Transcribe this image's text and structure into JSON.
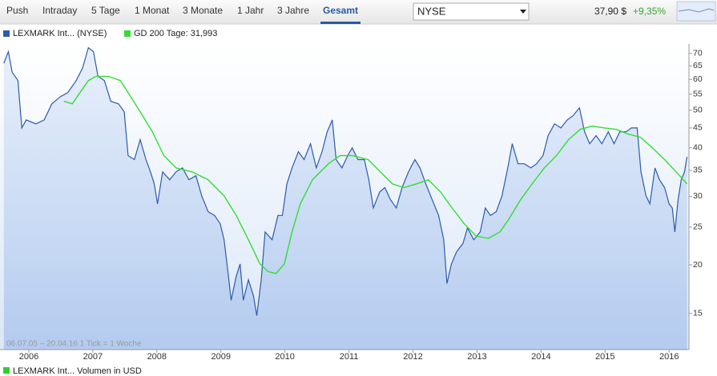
{
  "ui": {
    "tabs": [
      "Push",
      "Intraday",
      "5 Tage",
      "1 Monat",
      "3 Monate",
      "1 Jahr",
      "3 Jahre",
      "Gesamt"
    ],
    "active_tab": 7,
    "exchange": "NYSE",
    "price": "37,90 $",
    "change": "+9,35%"
  },
  "chart_data": {
    "type": "line",
    "log_scale": true,
    "xlim": [
      2005.55,
      2016.31
    ],
    "xticks": [
      2006,
      2007,
      2008,
      2009,
      2010,
      2011,
      2012,
      2013,
      2014,
      2015,
      2016
    ],
    "ylim": [
      12.1,
      74
    ],
    "yticks": [
      15,
      20,
      25,
      30,
      35,
      40,
      45,
      50,
      55,
      60,
      65,
      70
    ],
    "note": "06.07.05 – 20.04.16   1 Tick = 1 Woche",
    "series": [
      {
        "name": "LEXMARK Int... (NYSE)",
        "color": "#2d5ca8",
        "x": [
          2005.61,
          2005.68,
          2005.74,
          2005.83,
          2005.89,
          2005.96,
          2006.11,
          2006.24,
          2006.36,
          2006.49,
          2006.61,
          2006.74,
          2006.84,
          2006.93,
          2007.01,
          2007.08,
          2007.18,
          2007.28,
          2007.4,
          2007.49,
          2007.55,
          2007.65,
          2007.74,
          2007.83,
          2007.9,
          2007.96,
          2008.01,
          2008.09,
          2008.2,
          2008.3,
          2008.4,
          2008.5,
          2008.61,
          2008.7,
          2008.8,
          2008.9,
          2008.99,
          2009.05,
          2009.11,
          2009.16,
          2009.24,
          2009.3,
          2009.35,
          2009.43,
          2009.51,
          2009.56,
          2009.63,
          2009.69,
          2009.8,
          2009.89,
          2009.96,
          2010.03,
          2010.11,
          2010.21,
          2010.3,
          2010.4,
          2010.49,
          2010.58,
          2010.66,
          2010.74,
          2010.8,
          2010.89,
          2010.98,
          2011.05,
          2011.14,
          2011.24,
          2011.31,
          2011.38,
          2011.48,
          2011.56,
          2011.65,
          2011.74,
          2011.83,
          2011.93,
          2012.03,
          2012.11,
          2012.2,
          2012.3,
          2012.4,
          2012.48,
          2012.53,
          2012.6,
          2012.68,
          2012.78,
          2012.85,
          2012.95,
          2013.05,
          2013.13,
          2013.21,
          2013.3,
          2013.39,
          2013.48,
          2013.55,
          2013.64,
          2013.74,
          2013.84,
          2013.93,
          2014.03,
          2014.11,
          2014.21,
          2014.31,
          2014.41,
          2014.5,
          2014.6,
          2014.68,
          2014.76,
          2014.86,
          2014.95,
          2015.05,
          2015.14,
          2015.23,
          2015.33,
          2015.41,
          2015.5,
          2015.56,
          2015.64,
          2015.7,
          2015.78,
          2015.85,
          2015.93,
          2016.0,
          2016.05,
          2016.09,
          2016.14,
          2016.19,
          2016.24,
          2016.28
        ],
        "values": [
          66.0,
          70.7,
          62.6,
          59.6,
          45.0,
          47.2,
          46.1,
          47.2,
          51.9,
          54.1,
          55.5,
          59.6,
          64.2,
          72.4,
          70.7,
          61.1,
          59.6,
          52.7,
          51.9,
          49.5,
          38.2,
          37.3,
          42.0,
          37.3,
          34.7,
          32.3,
          28.7,
          34.7,
          33.1,
          34.7,
          35.5,
          33.1,
          33.9,
          30.1,
          27.4,
          26.8,
          25.5,
          23.2,
          19.2,
          16.2,
          18.7,
          20.1,
          16.2,
          18.3,
          16.6,
          14.8,
          18.3,
          24.3,
          23.2,
          26.8,
          26.8,
          32.3,
          35.5,
          39.1,
          37.3,
          41.0,
          35.5,
          39.1,
          44.0,
          47.2,
          37.3,
          35.5,
          38.2,
          40.0,
          37.3,
          37.3,
          33.1,
          28.0,
          30.8,
          31.6,
          29.4,
          28.0,
          31.6,
          34.7,
          37.3,
          35.5,
          32.3,
          29.4,
          26.8,
          23.2,
          17.9,
          20.1,
          21.6,
          22.7,
          24.9,
          23.2,
          24.3,
          28.0,
          26.8,
          27.4,
          30.1,
          35.5,
          41.0,
          36.4,
          36.4,
          35.5,
          36.4,
          38.2,
          43.0,
          46.1,
          45.0,
          47.2,
          48.4,
          50.7,
          44.0,
          41.0,
          43.0,
          41.0,
          44.0,
          41.0,
          44.0,
          44.0,
          45.0,
          45.0,
          34.7,
          30.1,
          28.7,
          35.5,
          33.1,
          31.6,
          28.7,
          28.0,
          24.3,
          29.4,
          33.1,
          34.7,
          37.9
        ]
      },
      {
        "name": "GD 200 Tage: 31,993",
        "color": "#33dd33",
        "x": [
          2006.55,
          2006.68,
          2006.8,
          2006.93,
          2007.05,
          2007.24,
          2007.43,
          2007.55,
          2007.74,
          2007.93,
          2008.11,
          2008.3,
          2008.55,
          2008.8,
          2009.05,
          2009.24,
          2009.43,
          2009.61,
          2009.74,
          2009.86,
          2009.99,
          2010.11,
          2010.24,
          2010.43,
          2010.68,
          2010.86,
          2011.05,
          2011.3,
          2011.49,
          2011.68,
          2011.86,
          2012.05,
          2012.24,
          2012.43,
          2012.61,
          2012.8,
          2012.99,
          2013.18,
          2013.36,
          2013.49,
          2013.68,
          2013.86,
          2014.05,
          2014.24,
          2014.43,
          2014.61,
          2014.8,
          2014.99,
          2015.18,
          2015.36,
          2015.55,
          2015.74,
          2015.93,
          2016.11,
          2016.28
        ],
        "values": [
          52.7,
          51.9,
          55.5,
          59.6,
          61.1,
          61.1,
          59.6,
          55.5,
          49.5,
          44.0,
          38.2,
          35.5,
          34.7,
          33.1,
          30.1,
          26.8,
          23.2,
          20.1,
          19.2,
          19.0,
          20.1,
          24.3,
          28.7,
          33.1,
          36.4,
          38.2,
          38.2,
          37.3,
          34.7,
          32.3,
          31.6,
          32.3,
          33.1,
          30.8,
          28.0,
          25.5,
          23.7,
          23.4,
          24.3,
          26.1,
          29.4,
          32.3,
          35.5,
          38.2,
          42.0,
          44.6,
          45.5,
          45.0,
          44.6,
          43.4,
          42.6,
          40.0,
          37.3,
          34.7,
          32.3
        ]
      }
    ],
    "volume_legend": {
      "name": "LEXMARK Int... Volumen in USD",
      "color": "#33cc33"
    }
  }
}
